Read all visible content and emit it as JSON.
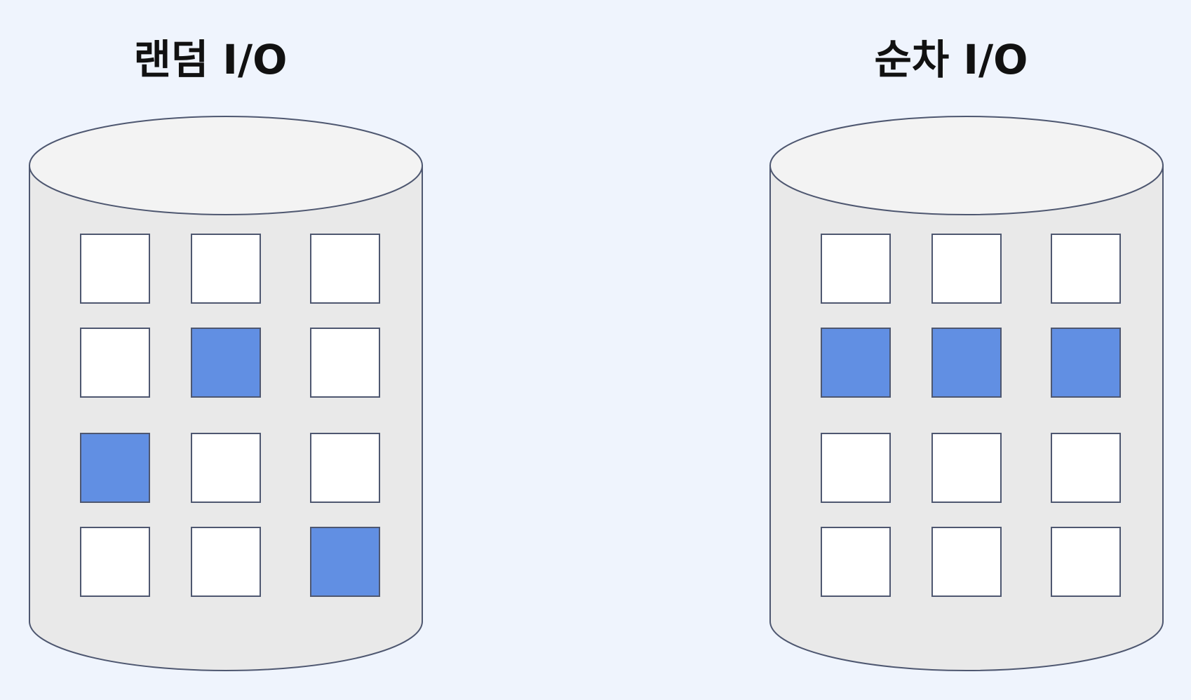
{
  "colors": {
    "background": "#eff4fd",
    "cylinder_body": "#e9e9e9",
    "cylinder_top": "#f3f3f3",
    "stroke": "#4e5770",
    "block_empty": "#ffffff",
    "block_read": "#618fe3"
  },
  "diagrams": [
    {
      "title": "랜덤 I/O",
      "grid": [
        [
          0,
          0,
          0
        ],
        [
          0,
          1,
          0
        ],
        [
          1,
          0,
          0
        ],
        [
          0,
          0,
          1
        ]
      ]
    },
    {
      "title": "순차 I/O",
      "grid": [
        [
          0,
          0,
          0
        ],
        [
          1,
          1,
          1
        ],
        [
          0,
          0,
          0
        ],
        [
          0,
          0,
          0
        ]
      ]
    }
  ]
}
